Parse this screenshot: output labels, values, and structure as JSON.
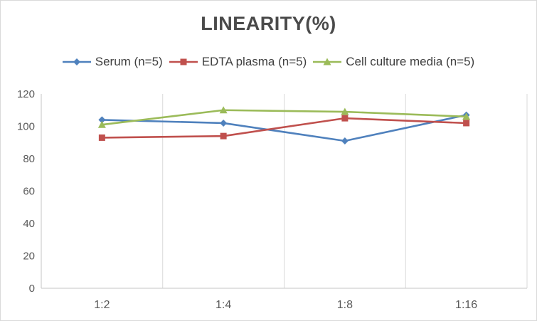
{
  "chart": {
    "title": "LINEARITY(%)"
  },
  "chart_data": {
    "type": "line",
    "title": "LINEARITY(%)",
    "categories": [
      "1:2",
      "1:4",
      "1:8",
      "1:16"
    ],
    "series": [
      {
        "name": "Serum (n=5)",
        "marker": "diamond",
        "color": "#4F81BD",
        "values": [
          104,
          102,
          91,
          107
        ]
      },
      {
        "name": "EDTA plasma (n=5)",
        "marker": "square",
        "color": "#C0504D",
        "values": [
          93,
          94,
          105,
          102
        ]
      },
      {
        "name": "Cell culture media (n=5)",
        "marker": "triangle",
        "color": "#9BBB59",
        "values": [
          101,
          110,
          109,
          106
        ]
      }
    ],
    "xlabel": "",
    "ylabel": "",
    "ylim": [
      0,
      120
    ],
    "yticks": [
      0,
      20,
      40,
      60,
      80,
      100,
      120
    ],
    "grid": "vertical-only",
    "legend_position": "top"
  },
  "colors": {
    "title_text": "#4a4a4a",
    "legend_text": "#404040",
    "tick_text": "#595959",
    "gridline": "#d9d9d9",
    "axis_line": "#c6c6c6",
    "background": "#ffffff"
  }
}
